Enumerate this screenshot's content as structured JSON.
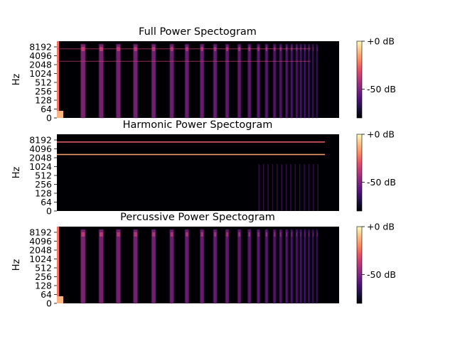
{
  "chart_data": [
    {
      "type": "heatmap",
      "title": "Full Power Spectogram",
      "ylabel": "Hz",
      "y_scale": "log2",
      "yticks": [
        "0",
        "64",
        "128",
        "256",
        "512",
        "1024",
        "2048",
        "4096",
        "8192"
      ],
      "colorbar": {
        "ticks": [
          "+0 dB",
          "-50 dB"
        ],
        "range_db": [
          -80,
          0
        ],
        "colormap": "magma"
      },
      "onset_peak_db": 0,
      "tones_hz": [
        2600,
        6900
      ],
      "onsets_sec": [
        0.0,
        2.6,
        4.4,
        6.1,
        7.8,
        9.6,
        11.4,
        12.9,
        14.4,
        15.7,
        16.9,
        18.1,
        19.1,
        20.0,
        20.8,
        21.6,
        22.2,
        22.8,
        23.3,
        23.8,
        24.2,
        24.6,
        25.0,
        25.4,
        25.8
      ],
      "duration_sec": 28
    },
    {
      "type": "heatmap",
      "title": "Harmonic Power Spectogram",
      "ylabel": "Hz",
      "y_scale": "log2",
      "yticks": [
        "0",
        "64",
        "128",
        "256",
        "512",
        "1024",
        "2048",
        "4096",
        "8192"
      ],
      "colorbar": {
        "ticks": [
          "+0 dB",
          "-50 dB"
        ],
        "range_db": [
          -80,
          0
        ],
        "colormap": "magma"
      },
      "tones_hz": [
        2600,
        6900
      ],
      "duration_sec": 28
    },
    {
      "type": "heatmap",
      "title": "Percussive Power Spectogram",
      "ylabel": "Hz",
      "y_scale": "log2",
      "yticks": [
        "0",
        "64",
        "128",
        "256",
        "512",
        "1024",
        "2048",
        "4096",
        "8192"
      ],
      "colorbar": {
        "ticks": [
          "+0 dB",
          "-50 dB"
        ],
        "range_db": [
          -80,
          0
        ],
        "colormap": "magma"
      },
      "onset_peak_db": 0,
      "onsets_sec": [
        0.0,
        2.6,
        4.4,
        6.1,
        7.8,
        9.6,
        11.4,
        12.9,
        14.4,
        15.7,
        16.9,
        18.1,
        19.1,
        20.0,
        20.8,
        21.6,
        22.2,
        22.8,
        23.3,
        23.8,
        24.2,
        24.6,
        25.0,
        25.4,
        25.8
      ],
      "duration_sec": 28
    }
  ]
}
